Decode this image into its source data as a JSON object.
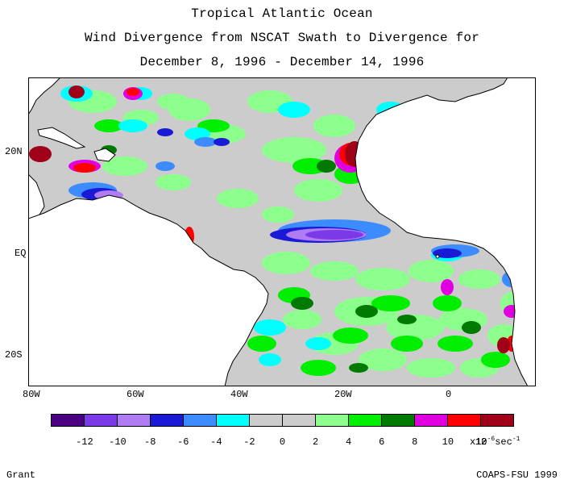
{
  "title": {
    "line1": "Tropical Atlantic Ocean",
    "line2": "Wind Divergence from NSCAT Swath to Divergence for",
    "line3": "December 8, 1996 - December 14, 1996"
  },
  "axes": {
    "lat_labels": [
      "20N",
      "EQ",
      "20S"
    ],
    "lon_labels": [
      "80W",
      "60W",
      "40W",
      "20W",
      "0"
    ]
  },
  "legend": {
    "colors": [
      "#4b0082",
      "#7b39e8",
      "#b07cf4",
      "#1a1ad6",
      "#3c8cff",
      "#00ffff",
      "#cccccc",
      "#cccccc",
      "#8cff8c",
      "#00ee00",
      "#007a00",
      "#e000e0",
      "#ff0000",
      "#a00018"
    ],
    "tick_labels": [
      "-12",
      "-10",
      "-8",
      "-6",
      "-4",
      "-2",
      "0",
      "2",
      "4",
      "6",
      "8",
      "10",
      "12"
    ],
    "units_prefix": "x10",
    "units_exp": "-6",
    "units_suffix": "sec",
    "units_exp2": "-1"
  },
  "credits": {
    "left": "Grant",
    "right": "COAPS-FSU 1999"
  }
}
